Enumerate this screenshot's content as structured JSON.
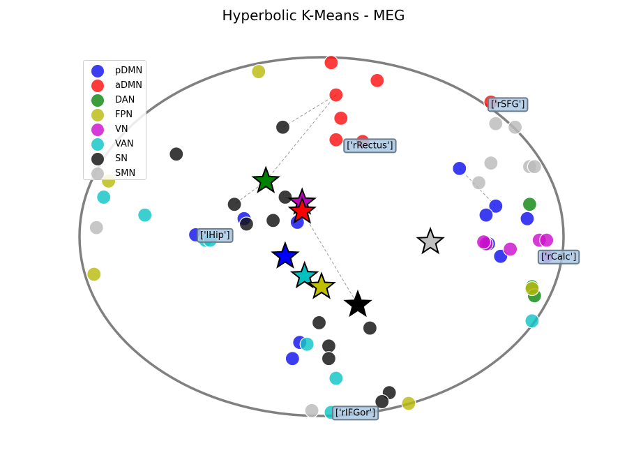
{
  "chart_data": {
    "type": "scatter",
    "title": "Hyperbolic K-Means - MEG",
    "xlabel": "",
    "ylabel": "",
    "xlim": [
      -1.0,
      1.0
    ],
    "ylim": [
      -1.0,
      1.0
    ],
    "grid": false,
    "axes_visible": false,
    "disk_boundary": "unit circle",
    "legend_position": "top-left",
    "series": [
      {
        "name": "pDMN",
        "color": "#1111ee",
        "points": [
          [
            -0.32,
            0.1
          ],
          [
            -0.1,
            0.08
          ],
          [
            -0.52,
            0.01
          ],
          [
            0.57,
            0.38
          ],
          [
            0.72,
            0.17
          ],
          [
            0.68,
            0.12
          ],
          [
            0.85,
            0.1
          ],
          [
            0.69,
            -0.04
          ],
          [
            0.74,
            -0.11
          ],
          [
            -0.09,
            -0.59
          ],
          [
            -0.12,
            -0.68
          ]
        ]
      },
      {
        "name": "aDMN",
        "color": "#ff1111",
        "points": [
          [
            0.04,
            0.97
          ],
          [
            0.23,
            0.87
          ],
          [
            0.06,
            0.79
          ],
          [
            0.08,
            0.66
          ],
          [
            0.06,
            0.54
          ],
          [
            0.17,
            0.53
          ],
          [
            0.7,
            0.75
          ]
        ]
      },
      {
        "name": "DAN",
        "color": "#118811",
        "points": [
          [
            0.86,
            0.18
          ],
          [
            0.87,
            -0.28
          ],
          [
            0.88,
            -0.33
          ]
        ]
      },
      {
        "name": "FPN",
        "color": "#bbbb11",
        "points": [
          [
            -0.26,
            0.92
          ],
          [
            -0.88,
            0.31
          ],
          [
            -0.94,
            -0.21
          ],
          [
            0.87,
            -0.29
          ],
          [
            0.36,
            -0.93
          ]
        ]
      },
      {
        "name": "VN",
        "color": "#cc11cc",
        "points": [
          [
            0.68,
            -0.04
          ],
          [
            0.67,
            -0.03
          ],
          [
            0.9,
            -0.02
          ],
          [
            0.93,
            -0.02
          ],
          [
            0.93,
            -0.11
          ],
          [
            0.78,
            -0.07
          ]
        ]
      },
      {
        "name": "VAN",
        "color": "#11c4c4",
        "points": [
          [
            -0.9,
            0.22
          ],
          [
            -0.73,
            0.12
          ],
          [
            -0.48,
            -0.02
          ],
          [
            -0.46,
            -0.02
          ],
          [
            0.87,
            -0.47
          ],
          [
            -0.06,
            -0.6
          ],
          [
            0.06,
            -0.79
          ],
          [
            0.04,
            -0.98
          ]
        ]
      },
      {
        "name": "SN",
        "color": "#111111",
        "points": [
          [
            -0.16,
            0.61
          ],
          [
            -0.6,
            0.46
          ],
          [
            -0.15,
            0.22
          ],
          [
            -0.36,
            0.18
          ],
          [
            -0.31,
            0.07
          ],
          [
            -0.2,
            0.09
          ],
          [
            -0.01,
            -0.48
          ],
          [
            0.2,
            -0.51
          ],
          [
            0.03,
            -0.61
          ],
          [
            0.03,
            -0.68
          ],
          [
            0.28,
            -0.87
          ],
          [
            0.25,
            -0.92
          ]
        ]
      },
      {
        "name": "SMN",
        "color": "#bbbbbb",
        "points": [
          [
            -0.93,
            0.05
          ],
          [
            0.72,
            0.63
          ],
          [
            0.8,
            0.61
          ],
          [
            0.7,
            0.41
          ],
          [
            0.86,
            0.39
          ],
          [
            0.88,
            0.39
          ],
          [
            0.65,
            0.3
          ],
          [
            -0.04,
            -0.97
          ]
        ]
      }
    ],
    "centroids": [
      {
        "series": "SN",
        "color": "#000000",
        "point": [
          0.15,
          -0.38
        ]
      },
      {
        "series": "DAN",
        "color": "#008000",
        "point": [
          -0.23,
          0.31
        ]
      },
      {
        "series": "VN",
        "color": "#c000c0",
        "point": [
          -0.08,
          0.19
        ]
      },
      {
        "series": "aDMN",
        "color": "#ff0000",
        "point": [
          -0.08,
          0.14
        ]
      },
      {
        "series": "SMN",
        "color": "#c0c0c0",
        "point": [
          0.45,
          -0.03
        ]
      },
      {
        "series": "pDMN",
        "color": "#0000ff",
        "point": [
          -0.15,
          -0.11
        ]
      },
      {
        "series": "VAN",
        "color": "#00c0c0",
        "point": [
          -0.07,
          -0.22
        ]
      },
      {
        "series": "FPN",
        "color": "#c0c000",
        "point": [
          0.0,
          -0.28
        ]
      }
    ],
    "annotations": [
      {
        "text": "['rSFG']",
        "point": [
          0.77,
          0.74
        ]
      },
      {
        "text": "['rRectus']",
        "point": [
          0.2,
          0.51
        ]
      },
      {
        "text": "['lHip']",
        "point": [
          -0.44,
          0.01
        ]
      },
      {
        "text": "['rCalc']",
        "point": [
          0.98,
          -0.11
        ]
      },
      {
        "text": "['rIFGor']",
        "point": [
          0.14,
          -0.98
        ]
      }
    ],
    "dashed_links": [
      [
        [
          0.06,
          0.79
        ],
        [
          -0.16,
          0.61
        ]
      ],
      [
        [
          0.06,
          0.79
        ],
        [
          -0.23,
          0.31
        ]
      ],
      [
        [
          -0.23,
          0.31
        ],
        [
          -0.36,
          0.18
        ]
      ],
      [
        [
          -0.15,
          0.22
        ],
        [
          -0.08,
          0.19
        ]
      ],
      [
        [
          -0.08,
          0.14
        ],
        [
          0.15,
          -0.38
        ]
      ],
      [
        [
          0.57,
          0.38
        ],
        [
          0.72,
          0.17
        ]
      ]
    ]
  }
}
